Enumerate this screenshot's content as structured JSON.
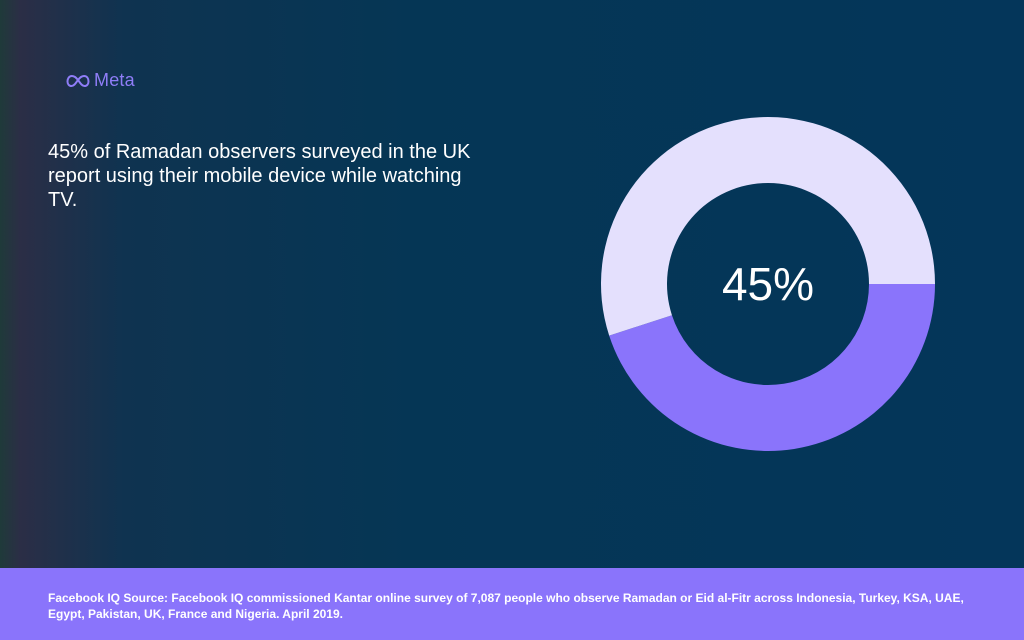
{
  "logo": {
    "text": "Meta",
    "icon": "meta-infinity-icon"
  },
  "headline": "45% of Ramadan observers surveyed in the UK report using their mobile device while watching TV.",
  "chart_data": {
    "type": "pie",
    "variant": "donut",
    "center_label": "45%",
    "slices": [
      {
        "label": "",
        "value": 45,
        "color": "#8a74fb"
      },
      {
        "label": "",
        "value": 55,
        "color": "#e4e0fd"
      }
    ]
  },
  "footer": {
    "source": "Facebook IQ Source: Facebook IQ commissioned Kantar online survey of 7,087 people who observe Ramadan or Eid al-Fitr across Indonesia, Turkey, KSA, UAE, Egypt, Pakistan, UK, France and Nigeria. April 2019."
  },
  "colors": {
    "background": "#04365a",
    "accent": "#8a74fb",
    "light_slice": "#e4e0fd",
    "text": "#ffffff"
  }
}
